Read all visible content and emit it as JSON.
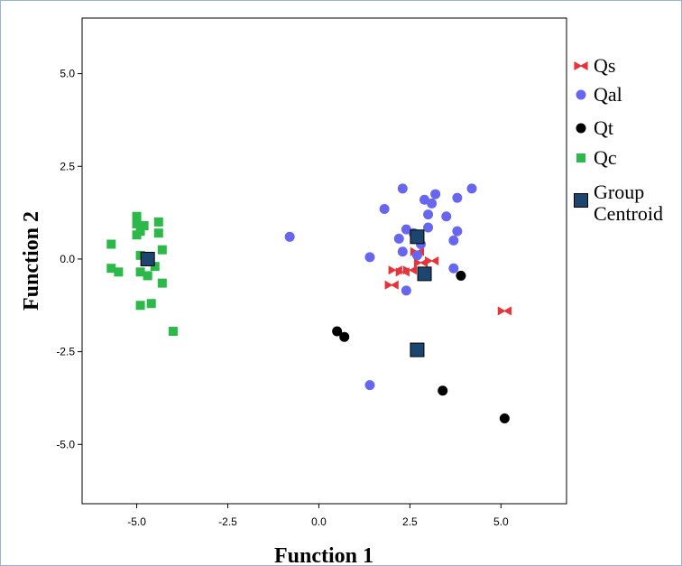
{
  "chart_data": {
    "type": "scatter",
    "xlabel": "Function 1",
    "ylabel": "Function 2",
    "xlim": [
      -6.5,
      6.8
    ],
    "ylim": [
      -6.6,
      6.5
    ],
    "xticks": [
      -5.0,
      -2.5,
      0.0,
      2.5,
      5.0
    ],
    "yticks": [
      5.0,
      2.5,
      0.0,
      -2.5,
      -5.0
    ],
    "xtick_labels": [
      "-5.0",
      "-2.5",
      "0.0",
      "2.5",
      "5.0"
    ],
    "ytick_labels": [
      "5.0",
      "2.5",
      "0.0",
      "-2.5",
      "-5.0"
    ],
    "grid": false,
    "legend_position": "right",
    "series": [
      {
        "name": "Qs",
        "marker": "bowtie",
        "color": "#e8333a",
        "points": [
          [
            2.1,
            -0.3
          ],
          [
            2.3,
            -0.35
          ],
          [
            2.5,
            -0.3
          ],
          [
            2.0,
            -0.7
          ],
          [
            2.7,
            0.2
          ],
          [
            2.8,
            -0.1
          ],
          [
            3.1,
            -0.05
          ],
          [
            5.1,
            -1.4
          ]
        ]
      },
      {
        "name": "Qal",
        "marker": "circle",
        "color": "#6666ee",
        "points": [
          [
            -0.8,
            0.6
          ],
          [
            1.4,
            -3.4
          ],
          [
            1.4,
            0.05
          ],
          [
            1.8,
            1.35
          ],
          [
            2.3,
            1.9
          ],
          [
            2.2,
            0.55
          ],
          [
            2.4,
            0.8
          ],
          [
            2.6,
            0.7
          ],
          [
            2.3,
            0.2
          ],
          [
            2.4,
            -0.85
          ],
          [
            2.9,
            1.6
          ],
          [
            3.0,
            1.2
          ],
          [
            3.1,
            1.5
          ],
          [
            3.2,
            1.75
          ],
          [
            3.5,
            1.15
          ],
          [
            3.0,
            0.85
          ],
          [
            3.7,
            0.5
          ],
          [
            3.8,
            0.75
          ],
          [
            3.8,
            1.65
          ],
          [
            4.2,
            1.9
          ],
          [
            3.7,
            -0.25
          ],
          [
            2.7,
            0.1
          ],
          [
            2.8,
            0.4
          ]
        ]
      },
      {
        "name": "Qt",
        "marker": "dot",
        "color": "#000000",
        "points": [
          [
            0.5,
            -1.95
          ],
          [
            0.7,
            -2.1
          ],
          [
            3.4,
            -3.55
          ],
          [
            3.9,
            -0.45
          ],
          [
            5.1,
            -4.3
          ]
        ]
      },
      {
        "name": "Qc",
        "marker": "square",
        "color": "#2db84a",
        "points": [
          [
            -5.0,
            1.15
          ],
          [
            -5.0,
            0.95
          ],
          [
            -4.9,
            0.75
          ],
          [
            -4.8,
            0.9
          ],
          [
            -4.4,
            1.0
          ],
          [
            -4.4,
            0.7
          ],
          [
            -5.0,
            0.65
          ],
          [
            -5.7,
            0.4
          ],
          [
            -4.3,
            0.25
          ],
          [
            -4.9,
            0.1
          ],
          [
            -4.7,
            -0.05
          ],
          [
            -4.5,
            -0.2
          ],
          [
            -5.7,
            -0.25
          ],
          [
            -5.5,
            -0.35
          ],
          [
            -4.9,
            -0.35
          ],
          [
            -4.7,
            -0.45
          ],
          [
            -4.3,
            -0.65
          ],
          [
            -4.9,
            -1.25
          ],
          [
            -4.6,
            -1.2
          ],
          [
            -4.0,
            -1.95
          ]
        ]
      },
      {
        "name": "Group Centroid",
        "marker": "centroid",
        "color": "#1c4670",
        "points": [
          [
            -4.7,
            0.0
          ],
          [
            2.7,
            0.6
          ],
          [
            2.9,
            -0.4
          ],
          [
            2.7,
            -2.45
          ]
        ]
      }
    ],
    "legend": [
      {
        "name_lines": [
          "Qs"
        ],
        "marker": "bowtie",
        "color": "#e8333a"
      },
      {
        "name_lines": [
          "Qal"
        ],
        "marker": "circle",
        "color": "#6666ee"
      },
      {
        "name_lines": [
          "Qt"
        ],
        "marker": "dot",
        "color": "#000000"
      },
      {
        "name_lines": [
          "Qc"
        ],
        "marker": "square",
        "color": "#2db84a"
      },
      {
        "name_lines": [
          "Group",
          "Centroid"
        ],
        "marker": "centroid",
        "color": "#1c4670"
      }
    ]
  }
}
